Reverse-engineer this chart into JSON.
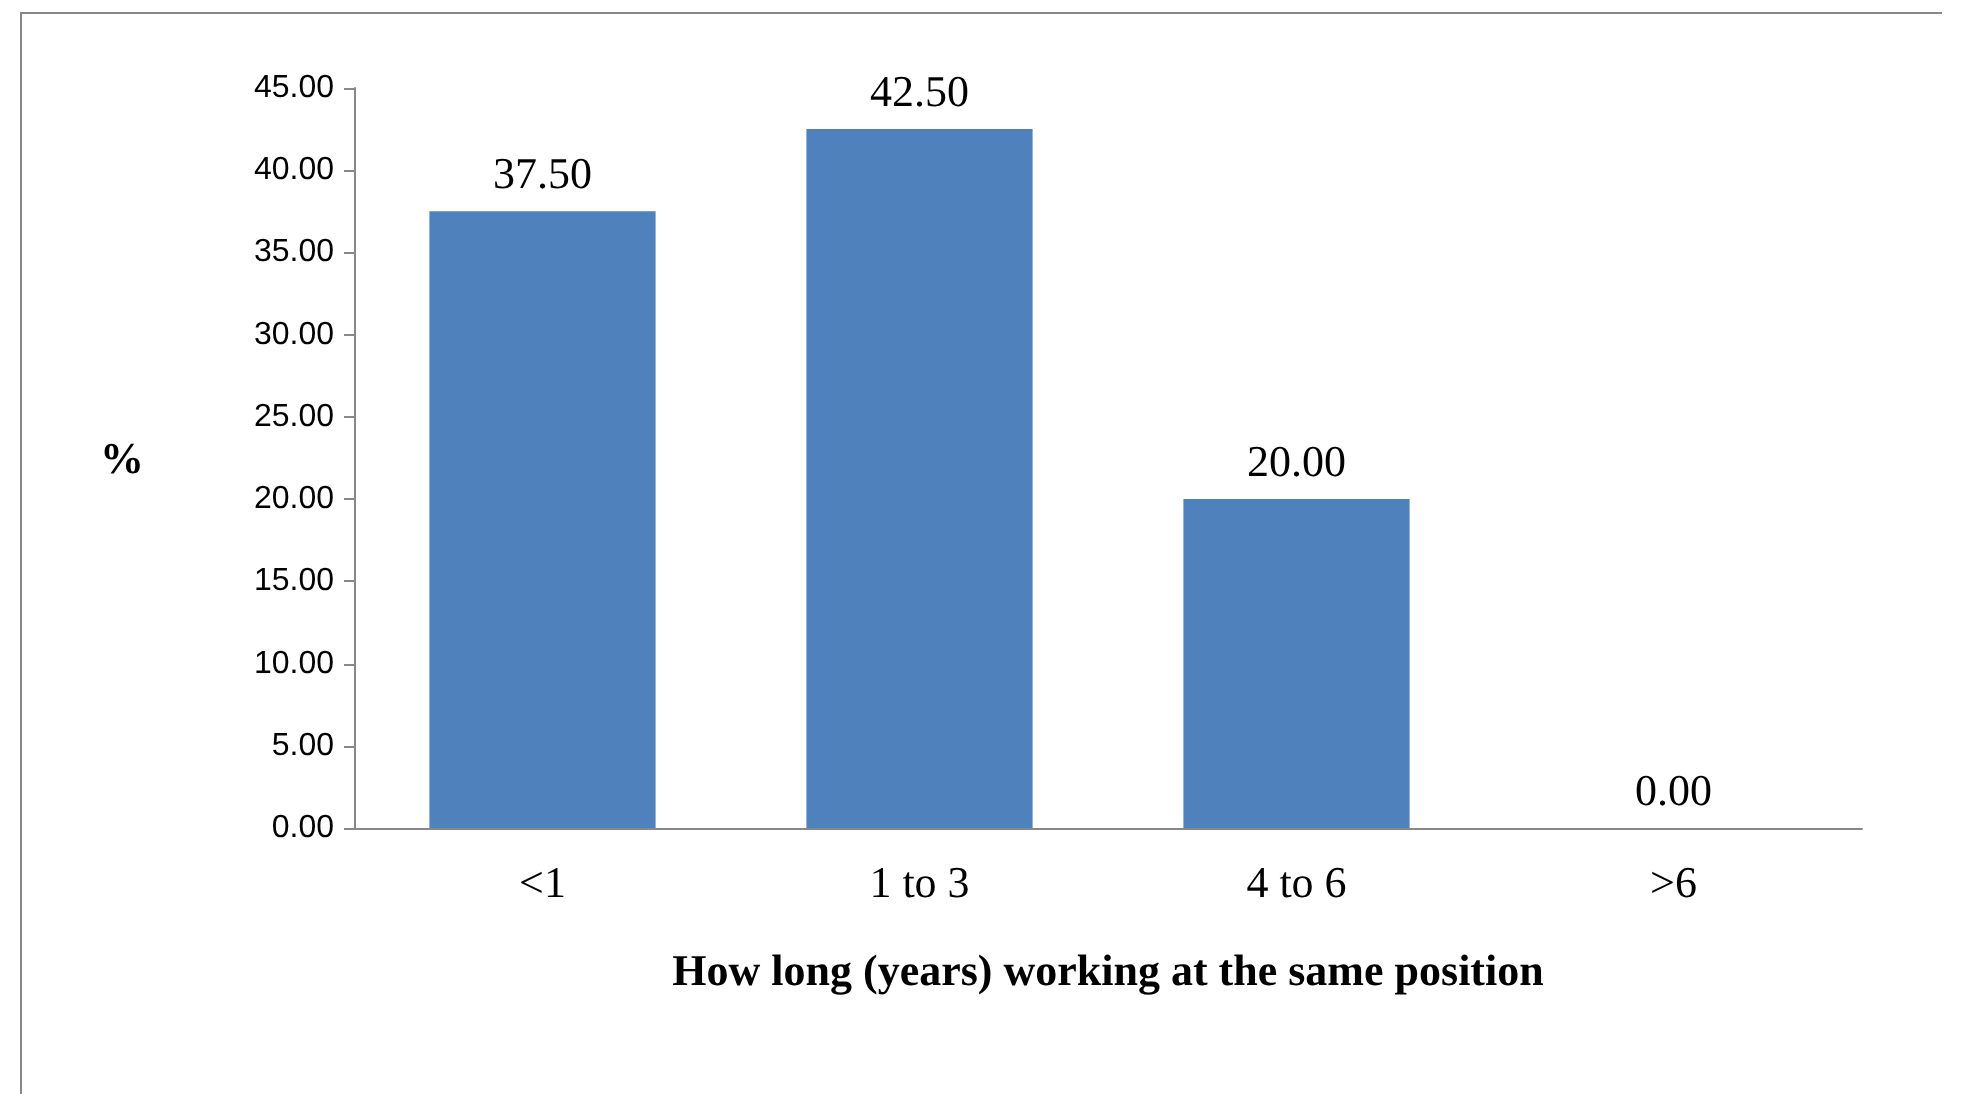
{
  "chart_data": {
    "type": "bar",
    "xlabel": "How long (years) working at the same position",
    "ylabel": "%",
    "categories": [
      "<1",
      "1 to 3",
      "4 to 6",
      ">6"
    ],
    "values": [
      37.5,
      42.5,
      20,
      0
    ],
    "color": "#4f81bd",
    "value_labels": [
      "37.50",
      "42.50",
      "20.00",
      "0.00"
    ],
    "ylim": [
      0,
      45
    ],
    "yticks": [
      {
        "value": 0,
        "label": "0.00"
      },
      {
        "value": 5,
        "label": "5.00"
      },
      {
        "value": 10,
        "label": "10.00"
      },
      {
        "value": 15,
        "label": "15.00"
      },
      {
        "value": 20,
        "label": "20.00"
      },
      {
        "value": 25,
        "label": "25.00"
      },
      {
        "value": 30,
        "label": "30.00"
      },
      {
        "value": 35,
        "label": "35.00"
      },
      {
        "value": 40,
        "label": "40.00"
      },
      {
        "value": 45,
        "label": "45.00"
      }
    ]
  }
}
